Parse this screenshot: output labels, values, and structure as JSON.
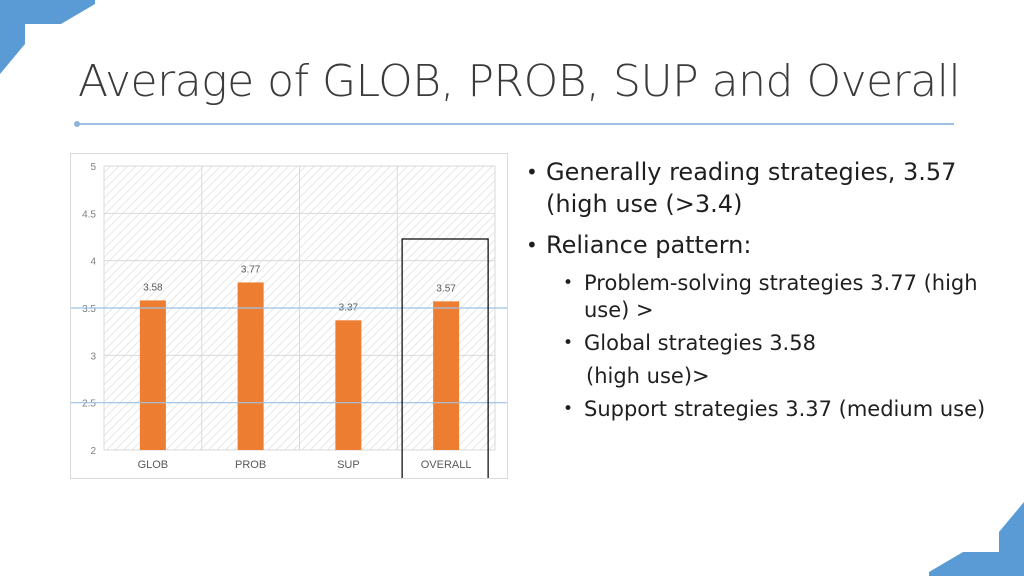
{
  "slide": {
    "title": "Average of GLOB, PROB, SUP and Overall",
    "accent_color": "#5b9bd5",
    "bullets": [
      {
        "level": 1,
        "text": "Generally reading strategies, 3.57 (high use (>3.4)"
      },
      {
        "level": 1,
        "text": "Reliance pattern:"
      },
      {
        "level": 2,
        "text": "Problem-solving strategies 3.77 (high use) >"
      },
      {
        "level": 2,
        "text": "Global strategies 3.58",
        "continuation": "(high use)>"
      },
      {
        "level": 2,
        "text": "Support strategies 3.37 (medium use)"
      }
    ]
  },
  "chart_data": {
    "type": "bar",
    "categories": [
      "GLOB",
      "PROB",
      "SUP",
      "OVERALL"
    ],
    "values": [
      3.58,
      3.77,
      3.37,
      3.57
    ],
    "data_labels": [
      "3.58",
      "3.77",
      "3.37",
      "3.57"
    ],
    "y_ticks": [
      "2",
      "2.5",
      "3",
      "3.5",
      "4",
      "4.5",
      "5"
    ],
    "ylim": [
      2,
      5
    ],
    "reference_lines": [
      3.5,
      2.5
    ],
    "highlighted_category": "OVERALL",
    "grid": true,
    "bar_color": "#ed7d31",
    "reference_line_color": "#9dc3e6",
    "highlight_box_color": "#000000"
  }
}
